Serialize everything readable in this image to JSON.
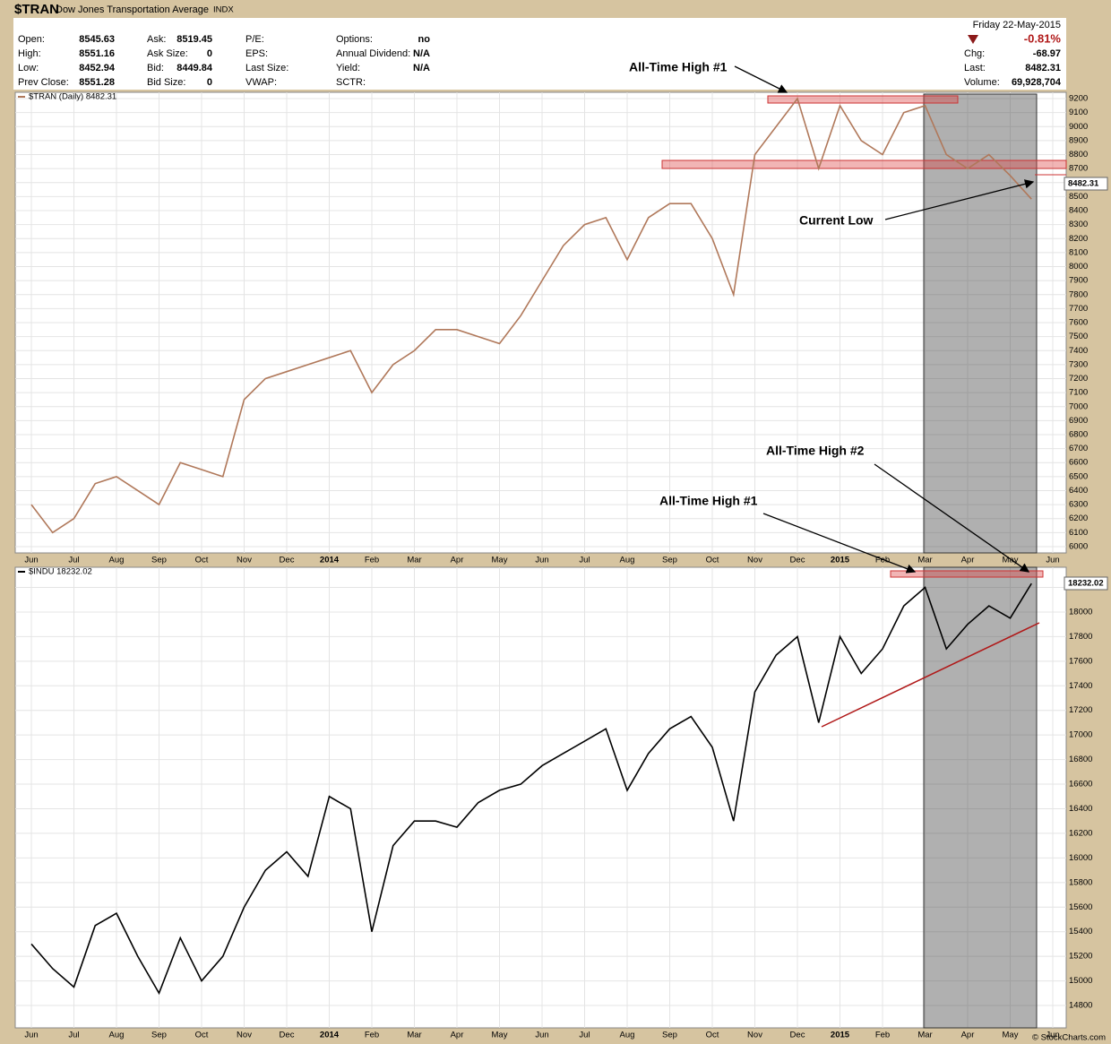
{
  "header": {
    "symbol": "$TRAN",
    "name": "Dow Jones Transportation Average",
    "exchange": "INDX",
    "columns": [
      [
        {
          "label": "Open:",
          "value": "8545.63"
        },
        {
          "label": "High:",
          "value": "8551.16"
        },
        {
          "label": "Low:",
          "value": "8452.94"
        },
        {
          "label": "Prev Close:",
          "value": "8551.28"
        }
      ],
      [
        {
          "label": "Ask:",
          "value": "8519.45"
        },
        {
          "label": "Ask Size:",
          "value": "0"
        },
        {
          "label": "Bid:",
          "value": "8449.84"
        },
        {
          "label": "Bid Size:",
          "value": "0"
        }
      ],
      [
        {
          "label": "P/E:"
        },
        {
          "label": "EPS:"
        },
        {
          "label": "Last Size:"
        },
        {
          "label": "VWAP:"
        }
      ],
      [
        {
          "label": "Options:",
          "value": "no"
        },
        {
          "label": "Annual Dividend:",
          "value": "N/A"
        },
        {
          "label": "Yield:",
          "value": "N/A"
        },
        {
          "label": "SCTR:"
        }
      ]
    ],
    "date": "Friday  22-May-2015",
    "change_pct": "-0.81%",
    "right": [
      {
        "label": "Chg:",
        "value": "-68.97"
      },
      {
        "label": "Last:",
        "value": "8482.31"
      },
      {
        "label": "Volume:",
        "value": "69,928,704"
      }
    ],
    "copyright": "© StockCharts.com"
  },
  "chart_data": [
    {
      "type": "line",
      "legend": "$TRAN (Daily) 8482.31",
      "last_label": "8482.31",
      "annotations": [
        "All-Time High #1",
        "Current Low"
      ],
      "categories": [
        "Jun",
        null,
        "Jul",
        null,
        "Aug",
        null,
        "Sep",
        null,
        "Oct",
        null,
        "Nov",
        null,
        "Dec",
        null,
        "2014",
        null,
        "Feb",
        null,
        "Mar",
        null,
        "Apr",
        null,
        "May",
        null,
        "Jun",
        null,
        "Jul",
        null,
        "Aug",
        null,
        "Sep",
        null,
        "Oct",
        null,
        "Nov",
        null,
        "Dec",
        null,
        "2015",
        null,
        "Feb",
        null,
        "Mar",
        null,
        "Apr",
        null,
        "May",
        null,
        "Jun"
      ],
      "series": [
        {
          "name": "$TRAN",
          "color": "#b0785a",
          "values": [
            6300,
            6100,
            6200,
            6450,
            6500,
            6400,
            6300,
            6600,
            6550,
            6500,
            7050,
            7200,
            7250,
            7300,
            7350,
            7400,
            7100,
            7300,
            7400,
            7550,
            7550,
            7500,
            7450,
            7650,
            7900,
            8150,
            8300,
            8350,
            8050,
            8350,
            8450,
            8450,
            8200,
            7800,
            8800,
            9000,
            9200,
            8700,
            9150,
            8900,
            8800,
            9100,
            9150,
            8800,
            8700,
            8800,
            8650,
            8482,
            null
          ]
        }
      ],
      "ylim": [
        5955,
        9245
      ],
      "yticks": [
        6000,
        6100,
        6200,
        6300,
        6400,
        6500,
        6600,
        6700,
        6800,
        6900,
        7000,
        7100,
        7200,
        7300,
        7400,
        7500,
        7600,
        7700,
        7800,
        7900,
        8000,
        8100,
        8200,
        8300,
        8400,
        8500,
        8600,
        8700,
        8800,
        8900,
        9000,
        9100,
        9200
      ],
      "grid": true
    },
    {
      "type": "line",
      "legend": "$INDU 18232.02",
      "last_label": "18232.02",
      "annotations": [
        "All-Time High #2",
        "All-Time High #1"
      ],
      "categories": [
        "Jun",
        null,
        "Jul",
        null,
        "Aug",
        null,
        "Sep",
        null,
        "Oct",
        null,
        "Nov",
        null,
        "Dec",
        null,
        "2014",
        null,
        "Feb",
        null,
        "Mar",
        null,
        "Apr",
        null,
        "May",
        null,
        "Jun",
        null,
        "Jul",
        null,
        "Aug",
        null,
        "Sep",
        null,
        "Oct",
        null,
        "Nov",
        null,
        "Dec",
        null,
        "2015",
        null,
        "Feb",
        null,
        "Mar",
        null,
        "Apr",
        null,
        "May",
        null,
        "Jun"
      ],
      "series": [
        {
          "name": "$INDU",
          "color": "#000000",
          "values": [
            15300,
            15100,
            14950,
            15450,
            15550,
            15200,
            14900,
            15350,
            15000,
            15200,
            15600,
            15900,
            16050,
            15850,
            16500,
            16400,
            15400,
            16100,
            16300,
            16300,
            16250,
            16450,
            16550,
            16600,
            16750,
            16850,
            16950,
            17050,
            16550,
            16850,
            17050,
            17150,
            16900,
            16300,
            17350,
            17650,
            17800,
            17100,
            17800,
            17500,
            17700,
            18050,
            18200,
            17700,
            17900,
            18050,
            17950,
            18232,
            null
          ]
        }
      ],
      "ylim": [
        14618,
        18364
      ],
      "yticks": [
        14800,
        15000,
        15200,
        15400,
        15600,
        15800,
        16000,
        16200,
        16400,
        16600,
        16800,
        17000,
        17200,
        17400,
        17600,
        17800,
        18000,
        18200
      ],
      "grid": true
    }
  ]
}
